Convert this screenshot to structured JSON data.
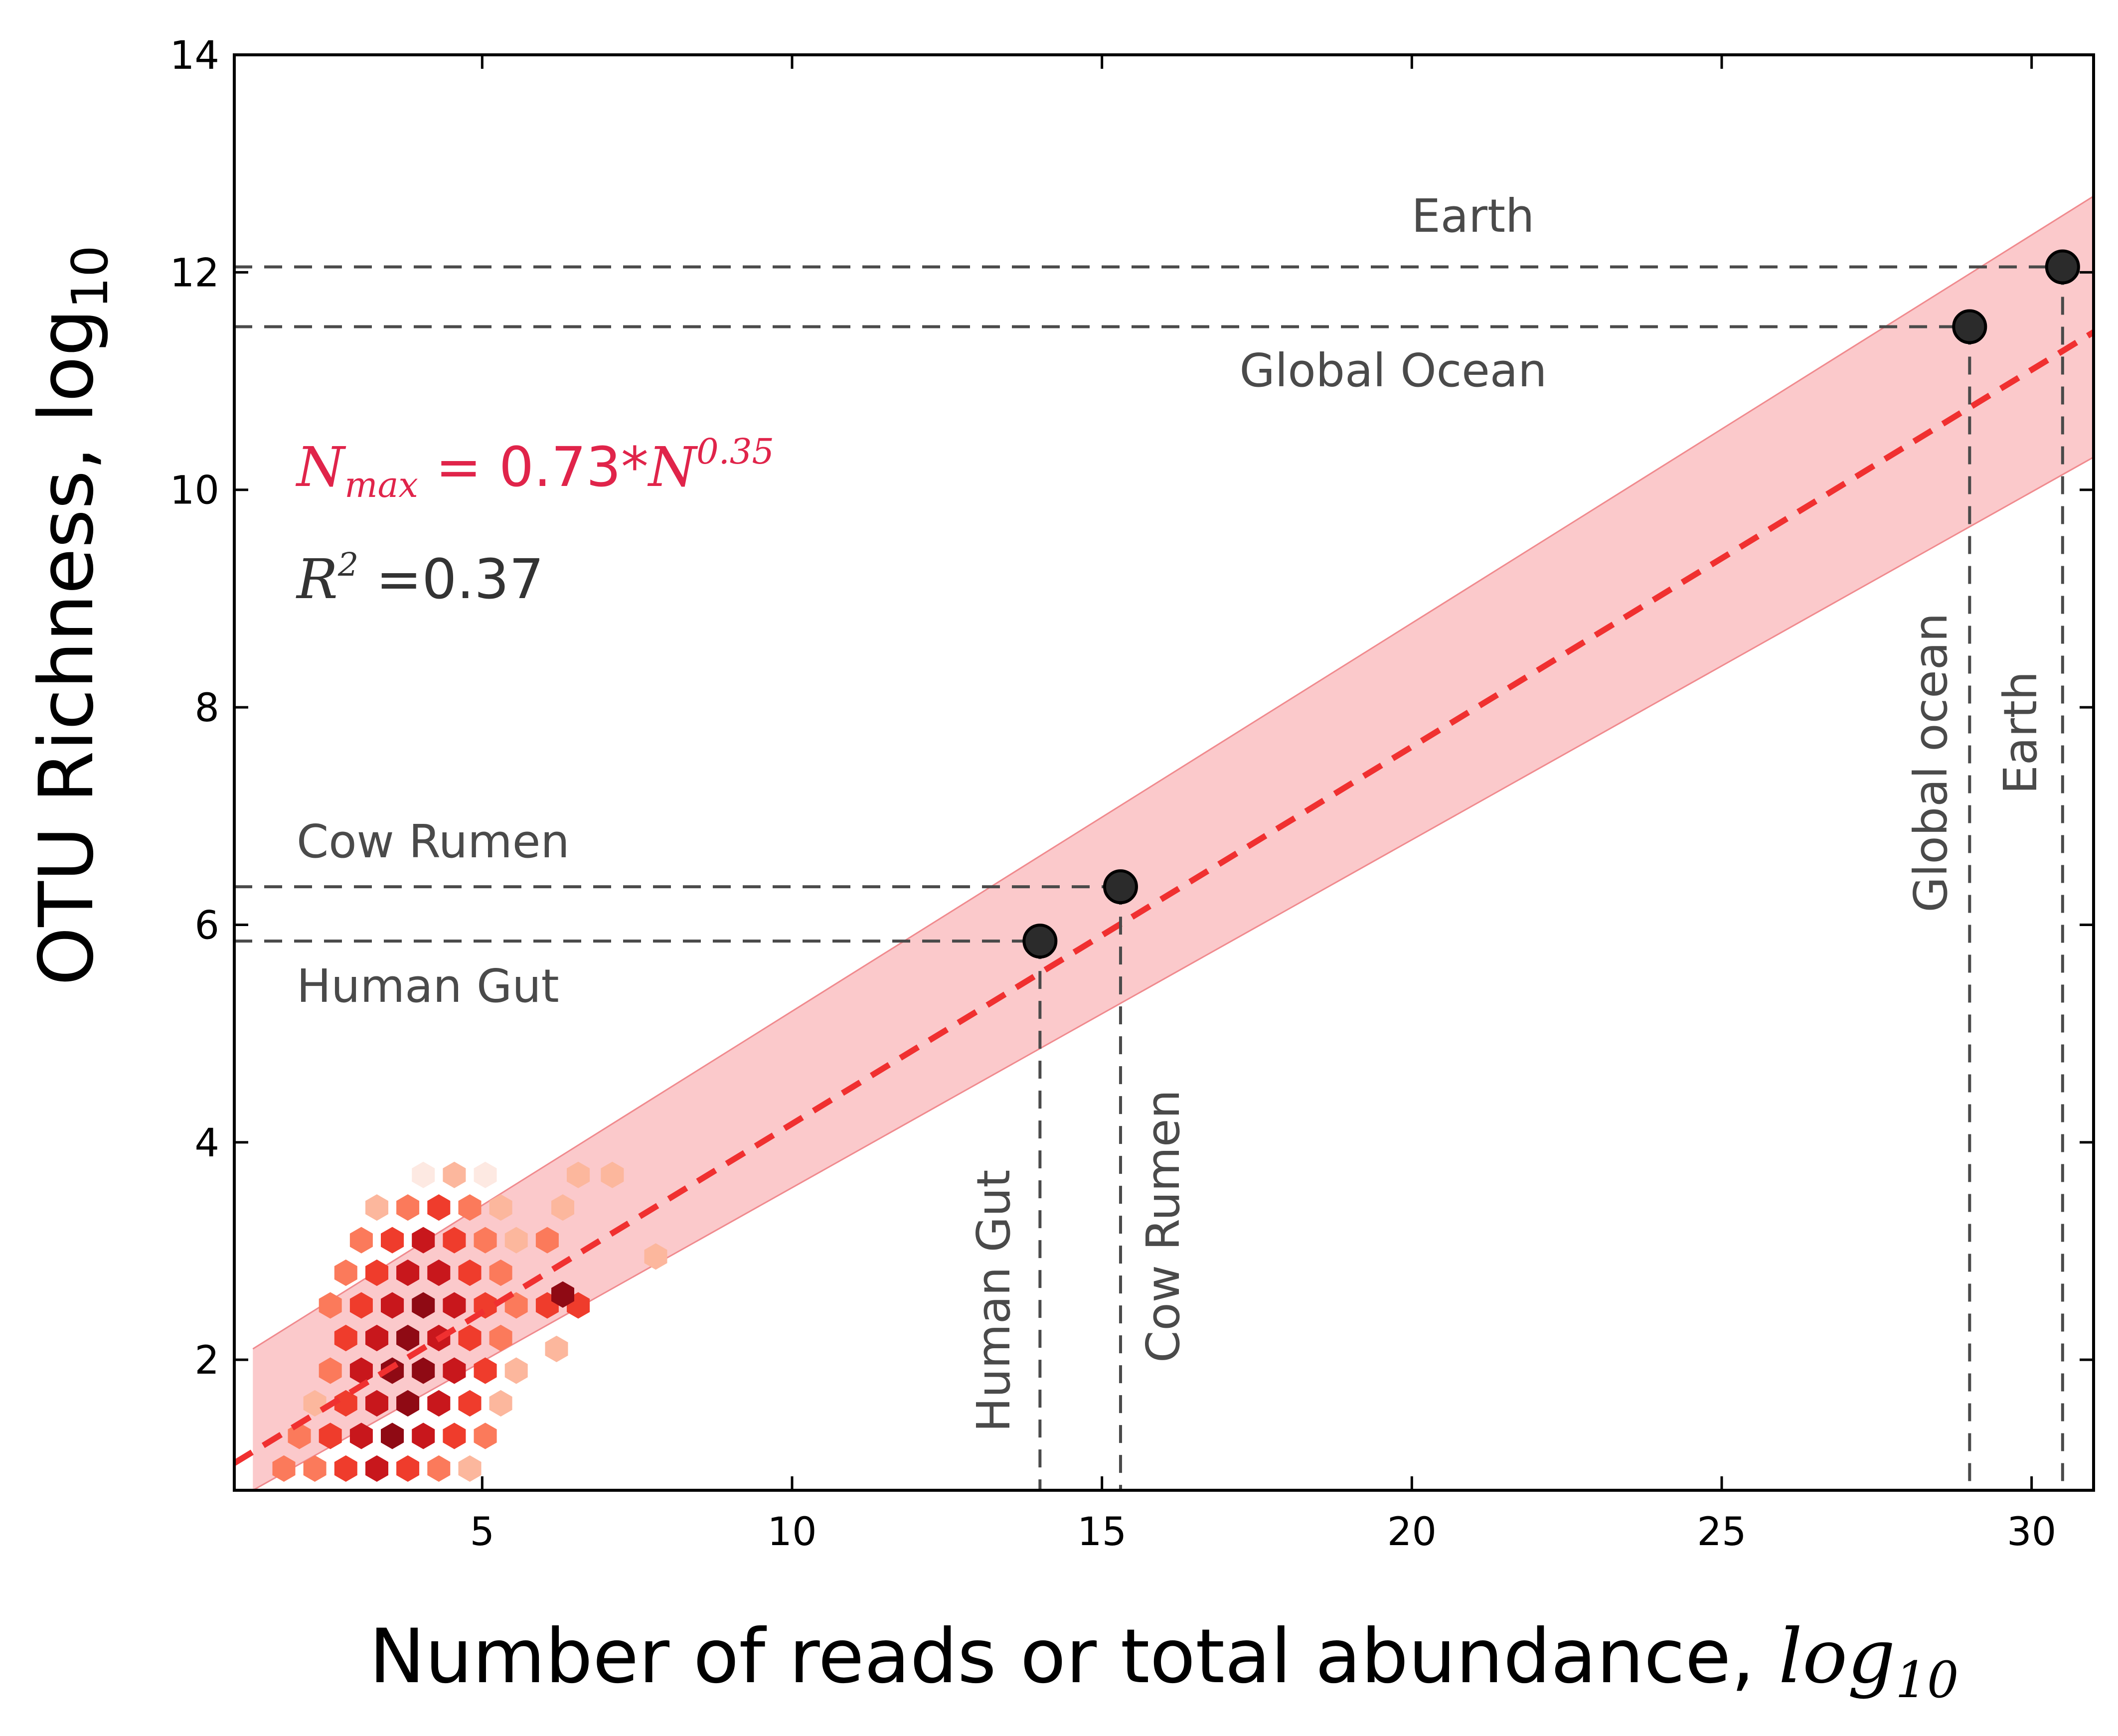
{
  "chart_data": {
    "type": "scatter",
    "xlabel": {
      "main": "Number of reads or total abundance, ",
      "math": "log",
      "sub": "10"
    },
    "ylabel": {
      "main": "OTU Richness, log",
      "sub": "10"
    },
    "xlim": [
      1,
      31
    ],
    "ylim": [
      0.8,
      14
    ],
    "xticks": [
      5,
      10,
      15,
      20,
      25,
      30
    ],
    "yticks": [
      2,
      4,
      6,
      8,
      10,
      12,
      14
    ],
    "grid": false,
    "colors": {
      "fit_line": "#f03030",
      "band": "#f9b7b9",
      "band_edge": "#f08a8e",
      "points": "#2b2b2b",
      "guides": "#4a4a4a",
      "equation": "#e0244a",
      "annotation_text": "#4a4a4a",
      "hexbin_ramp": [
        "#fde9e2",
        "#fcb79d",
        "#fb7a5b",
        "#ef3c2c",
        "#c8171c",
        "#8f0a14"
      ]
    },
    "fit": {
      "type": "power-law",
      "line": [
        [
          1,
          1.05
        ],
        [
          31,
          11.45
        ]
      ],
      "band_upper": [
        [
          1.3,
          2.1
        ],
        [
          31,
          12.7
        ]
      ],
      "band_lower": [
        [
          1.3,
          0.8
        ],
        [
          31,
          10.3
        ]
      ]
    },
    "equation": {
      "lhs": "N",
      "lhs_sub": "max",
      "mid": " = 0.73*",
      "rhs": "N",
      "rhs_sup": "0.35"
    },
    "r2": {
      "lhs": "R",
      "lhs_sup": "2",
      "value": " =0.37"
    },
    "points": [
      {
        "name": "Human Gut",
        "x": 14.0,
        "y": 5.85
      },
      {
        "name": "Cow Rumen",
        "x": 15.3,
        "y": 6.35
      },
      {
        "name": "Global Ocean",
        "x": 29.0,
        "y": 11.5
      },
      {
        "name": "Earth",
        "x": 30.5,
        "y": 12.05
      }
    ],
    "horizontal_labels": [
      "Earth",
      "Global Ocean",
      "Cow Rumen",
      "Human Gut"
    ],
    "vertical_labels": [
      "Human Gut",
      "Cow Rumen",
      "Global ocean",
      "Earth"
    ],
    "hexbin": [
      [
        1.8,
        1.0,
        2
      ],
      [
        2.3,
        1.0,
        2
      ],
      [
        2.8,
        1.0,
        3
      ],
      [
        3.3,
        1.0,
        4
      ],
      [
        3.8,
        1.0,
        3
      ],
      [
        4.3,
        1.0,
        2
      ],
      [
        4.8,
        1.0,
        1
      ],
      [
        2.05,
        1.3,
        2
      ],
      [
        2.55,
        1.3,
        3
      ],
      [
        3.05,
        1.3,
        4
      ],
      [
        3.55,
        1.3,
        5
      ],
      [
        4.05,
        1.3,
        4
      ],
      [
        4.55,
        1.3,
        3
      ],
      [
        5.05,
        1.3,
        2
      ],
      [
        2.3,
        1.6,
        1
      ],
      [
        2.8,
        1.6,
        3
      ],
      [
        3.3,
        1.6,
        4
      ],
      [
        3.8,
        1.6,
        5
      ],
      [
        4.3,
        1.6,
        4
      ],
      [
        4.8,
        1.6,
        3
      ],
      [
        5.3,
        1.6,
        1
      ],
      [
        2.55,
        1.9,
        2
      ],
      [
        3.05,
        1.9,
        4
      ],
      [
        3.55,
        1.9,
        5
      ],
      [
        4.05,
        1.9,
        5
      ],
      [
        4.55,
        1.9,
        4
      ],
      [
        5.05,
        1.9,
        3
      ],
      [
        5.55,
        1.9,
        1
      ],
      [
        2.8,
        2.2,
        3
      ],
      [
        3.3,
        2.2,
        4
      ],
      [
        3.8,
        2.2,
        5
      ],
      [
        4.3,
        2.2,
        4
      ],
      [
        4.8,
        2.2,
        3
      ],
      [
        5.3,
        2.2,
        2
      ],
      [
        6.2,
        2.1,
        1
      ],
      [
        2.55,
        2.5,
        2
      ],
      [
        3.05,
        2.5,
        3
      ],
      [
        3.55,
        2.5,
        4
      ],
      [
        4.05,
        2.5,
        5
      ],
      [
        4.55,
        2.5,
        4
      ],
      [
        5.05,
        2.5,
        3
      ],
      [
        5.55,
        2.5,
        2
      ],
      [
        6.05,
        2.5,
        3
      ],
      [
        6.55,
        2.5,
        3
      ],
      [
        2.8,
        2.8,
        2
      ],
      [
        3.3,
        2.8,
        3
      ],
      [
        3.8,
        2.8,
        4
      ],
      [
        4.3,
        2.8,
        4
      ],
      [
        4.8,
        2.8,
        3
      ],
      [
        5.3,
        2.8,
        2
      ],
      [
        6.3,
        2.6,
        5
      ],
      [
        3.05,
        3.1,
        2
      ],
      [
        3.55,
        3.1,
        3
      ],
      [
        4.05,
        3.1,
        4
      ],
      [
        4.55,
        3.1,
        3
      ],
      [
        5.05,
        3.1,
        2
      ],
      [
        5.55,
        3.1,
        1
      ],
      [
        6.05,
        3.1,
        2
      ],
      [
        7.8,
        2.95,
        1
      ],
      [
        3.3,
        3.4,
        1
      ],
      [
        3.8,
        3.4,
        2
      ],
      [
        4.3,
        3.4,
        3
      ],
      [
        4.8,
        3.4,
        2
      ],
      [
        5.3,
        3.4,
        1
      ],
      [
        6.3,
        3.4,
        1
      ],
      [
        4.05,
        3.7,
        0
      ],
      [
        4.55,
        3.7,
        1
      ],
      [
        5.05,
        3.7,
        0
      ],
      [
        6.55,
        3.7,
        1
      ],
      [
        7.1,
        3.7,
        1
      ]
    ]
  }
}
